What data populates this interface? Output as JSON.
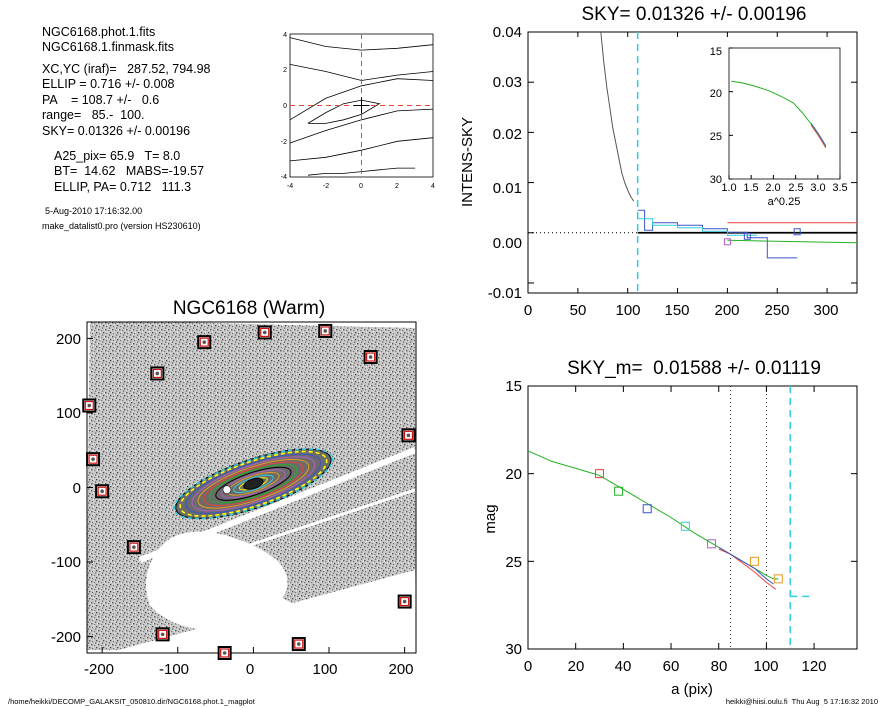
{
  "info": {
    "line1": "NGC6168.phot.1.fits",
    "line2": "NGC6168.1.finmask.fits",
    "xcyc": "XC,YC (iraf)=   287.52, 794.98",
    "ellip": "ELLIP = 0.716 +/- 0.008",
    "pa": "PA    = 108.7 +/-   0.6",
    "range": "range=   85.-  100.",
    "sky": "SKY= 0.01326 +/- 0.00196",
    "a25": "A25_pix= 65.9   T= 8.0",
    "bt": "BT=  14.62   MABS=-19.57",
    "ellippa": "ELLIP, PA= 0.712   111.3",
    "date": "5-Aug-2010 17:16:32.00",
    "program": "make_datalist0.pro (version HS230610)"
  },
  "footer": {
    "left": "/home/heikki/DECOMP_GALAKSIT_050810.dir/NGC6168.phot.1_magplot",
    "right": "heikki@hiisi.oulu.fi  Thu Aug  5 17:16:32 2010"
  },
  "colors": {
    "red": "#e8443a",
    "green": "#22b022",
    "blue": "#3a55c8",
    "cyan": "#33ccdd",
    "purple": "#b060c0",
    "orange": "#e89a22",
    "gray": "#555555"
  },
  "chart_data": [
    {
      "id": "contour",
      "type": "line",
      "title": "",
      "xlim": [
        -4,
        4
      ],
      "ylim": [
        -4,
        4
      ],
      "xticks": [
        "-4",
        "-2",
        "0",
        "2",
        "4"
      ],
      "yticks": [
        "4",
        "2",
        "0",
        "-2",
        "-4"
      ],
      "contours": [
        {
          "x": [
            -4,
            -2,
            0,
            2,
            4
          ],
          "y": [
            3.8,
            3.3,
            3.1,
            3.2,
            3.4
          ]
        },
        {
          "x": [
            -4,
            -2,
            0,
            2,
            4
          ],
          "y": [
            2.3,
            1.9,
            1.4,
            1.7,
            1.9
          ]
        },
        {
          "x": [
            -4,
            -2,
            0,
            2,
            4
          ],
          "y": [
            -0.8,
            0.4,
            1.1,
            1.5,
            1.4
          ]
        },
        {
          "x": [
            -4,
            -2,
            0,
            2,
            4
          ],
          "y": [
            -2.1,
            -1.4,
            -0.8,
            -0.3,
            -0.2
          ]
        },
        {
          "x": [
            -4,
            -2,
            0,
            2,
            4
          ],
          "y": [
            -3.1,
            -2.9,
            -2.5,
            -2.0,
            -1.8
          ]
        },
        {
          "x": [
            -3,
            -2,
            -1,
            0,
            1,
            2,
            3
          ],
          "y": [
            -3.9,
            -3.8,
            -3.8,
            -3.7,
            -3.6,
            -3.5,
            -3.5
          ]
        }
      ],
      "inner": {
        "x": [
          -3,
          -2,
          -1,
          0,
          1,
          0,
          -1,
          -2,
          -3
        ],
        "y": [
          -1.0,
          -0.4,
          0.1,
          0.3,
          0.1,
          -0.5,
          -0.8,
          -1.0,
          -1.0
        ]
      },
      "cross": {
        "x": 0,
        "y": 0
      },
      "dashed_x": 0,
      "dashed_y": 0
    },
    {
      "id": "sky_profile",
      "type": "line",
      "title": "SKY= 0.01326 +/- 0.00196",
      "xlabel": "",
      "ylabel": "INTENS-SKY",
      "xlim": [
        0,
        330
      ],
      "ylim": [
        -0.012,
        0.04
      ],
      "xticks": [
        "0",
        "50",
        "100",
        "150",
        "200",
        "250",
        "300"
      ],
      "yticks": [
        "0.04",
        "0.03",
        "0.02",
        "0.01",
        "0.00",
        "-0.01"
      ],
      "profile": {
        "x": [
          73,
          76,
          79,
          82,
          85,
          88,
          91,
          94,
          97,
          100,
          103,
          106
        ],
        "y": [
          0.04,
          0.034,
          0.029,
          0.025,
          0.021,
          0.018,
          0.015,
          0.012,
          0.01,
          0.0085,
          0.0072,
          0.0063
        ]
      },
      "sky_vline": 110,
      "steps": [
        {
          "name": "blue",
          "x": [
            110,
            117,
            125,
            150,
            175,
            200,
            220,
            240,
            270
          ],
          "y": [
            0.0045,
            0.0005,
            0.002,
            0.0015,
            0.0008,
            0.0001,
            -0.001,
            -0.005,
            -0.002
          ]
        },
        {
          "name": "cyan",
          "x": [
            110,
            125,
            150,
            175,
            200,
            230
          ],
          "y": [
            0.0028,
            0.0015,
            0.001,
            0.0003,
            -0.0005,
            -0.0008
          ]
        },
        {
          "name": "green",
          "x": [
            200,
            330
          ],
          "y": [
            -0.0015,
            -0.002
          ]
        },
        {
          "name": "red",
          "x": [
            200,
            330
          ],
          "y": [
            0.002,
            0.002
          ]
        }
      ],
      "markers": [
        {
          "x": 200,
          "y": -0.0018,
          "color": "purple"
        },
        {
          "x": 220,
          "y": -0.0007,
          "color": "blue"
        },
        {
          "x": 270,
          "y": 0.0002,
          "color": "blue"
        }
      ],
      "inset": {
        "xlabel": "a^0.25",
        "xlim": [
          1.0,
          3.5
        ],
        "ylim": [
          15,
          30
        ],
        "xticks": [
          "1.0",
          "1.5",
          "2.0",
          "2.5",
          "3.0",
          "3.5"
        ],
        "yticks": [
          "15",
          "20",
          "25",
          "30"
        ],
        "curve": {
          "x": [
            1.05,
            1.3,
            1.6,
            1.9,
            2.2,
            2.45,
            2.65,
            2.85,
            3.0,
            3.1,
            3.18
          ],
          "y": [
            18.8,
            19.0,
            19.4,
            19.9,
            20.6,
            21.3,
            22.4,
            23.7,
            24.8,
            25.6,
            26.3
          ]
        }
      }
    },
    {
      "id": "image",
      "type": "scatter",
      "title": "NGC6168 (Warm)",
      "xlim": [
        -220,
        215
      ],
      "ylim": [
        -222,
        222
      ],
      "xticks": [
        "-200",
        "-100",
        "0",
        "100",
        "200"
      ],
      "yticks": [
        "200",
        "100",
        "0",
        "-100",
        "-200"
      ],
      "stars": [
        {
          "x": -127,
          "y": 153
        },
        {
          "x": -65,
          "y": 195
        },
        {
          "x": 15,
          "y": 208
        },
        {
          "x": 95,
          "y": 210
        },
        {
          "x": 155,
          "y": 175
        },
        {
          "x": -217,
          "y": 110
        },
        {
          "x": 205,
          "y": 70
        },
        {
          "x": -212,
          "y": 38
        },
        {
          "x": -200,
          "y": -5
        },
        {
          "x": -158,
          "y": -80
        },
        {
          "x": -120,
          "y": -197
        },
        {
          "x": -38,
          "y": -222
        },
        {
          "x": 60,
          "y": -210
        },
        {
          "x": 200,
          "y": -153
        }
      ],
      "galaxy": {
        "cx": 0,
        "cy": 5,
        "semi_major": 110,
        "ellip": 0.716,
        "pa": 108.7
      }
    },
    {
      "id": "mag_profile",
      "type": "line",
      "title": "SKY_m=  0.01588 +/- 0.01119",
      "xlabel": "a (pix)",
      "ylabel": "mag",
      "xlim": [
        0,
        138
      ],
      "ylim": [
        15,
        30
      ],
      "xticks": [
        "0",
        "20",
        "40",
        "60",
        "80",
        "100",
        "120"
      ],
      "yticks": [
        "15",
        "20",
        "25",
        "30"
      ],
      "dotted_x": [
        85,
        100
      ],
      "sky_vline": 110,
      "sky_hline": {
        "x": [
          110,
          120
        ],
        "y": 27.0
      },
      "series": [
        {
          "name": "green",
          "x": [
            0,
            5,
            10,
            15,
            20,
            25,
            30,
            40,
            50,
            60,
            70,
            80,
            90,
            95,
            100,
            103,
            105
          ],
          "y": [
            18.7,
            19.0,
            19.3,
            19.5,
            19.7,
            19.9,
            20.1,
            20.9,
            21.7,
            22.5,
            23.4,
            24.2,
            25.0,
            25.4,
            25.8,
            26.0,
            26.0
          ]
        },
        {
          "name": "red",
          "x": [
            80,
            85,
            90,
            95,
            100,
            103,
            104
          ],
          "y": [
            24.3,
            24.6,
            25.1,
            25.6,
            26.2,
            26.5,
            26.6
          ]
        },
        {
          "name": "blue",
          "x": [
            80,
            85,
            90,
            95,
            100,
            103
          ],
          "y": [
            24.2,
            24.6,
            25.0,
            25.4,
            26.0,
            26.3
          ]
        }
      ],
      "markers": [
        {
          "x": 30,
          "y": 20.0,
          "color": "red"
        },
        {
          "x": 38,
          "y": 21.0,
          "color": "green"
        },
        {
          "x": 50,
          "y": 22.0,
          "color": "blue"
        },
        {
          "x": 66,
          "y": 23.0,
          "color": "cyan"
        },
        {
          "x": 77,
          "y": 24.0,
          "color": "purple"
        },
        {
          "x": 95,
          "y": 25.0,
          "color": "orange"
        },
        {
          "x": 105,
          "y": 26.0,
          "color": "orange"
        }
      ]
    }
  ]
}
